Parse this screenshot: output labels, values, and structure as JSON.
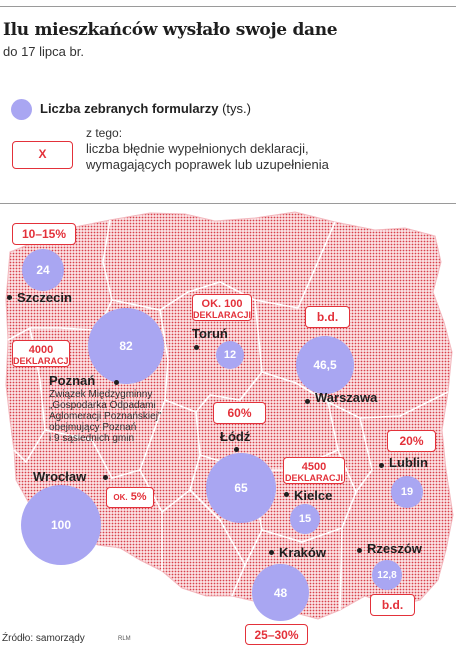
{
  "header": {
    "title": "Ilu mieszkańców wysłało swoje dane",
    "subtitle": "do 17 lipca br."
  },
  "legend": {
    "circle_label": "Liczba zebranych formularzy",
    "circle_unit": "(tys.)",
    "sub_label": "z tego:",
    "box_symbol": "X",
    "box_desc_line1": "liczba błędnie wypełnionych deklaracji,",
    "box_desc_line2": "wymagających poprawek lub uzupełnienia"
  },
  "colors": {
    "circle": "#a9a6f2",
    "tag_border": "#e3313a",
    "map_fill": "#f7c9cd",
    "map_dots": "#d8404b"
  },
  "cities": {
    "szczecin": {
      "name": "Szczecin",
      "value": "24",
      "tag": "10–15%"
    },
    "torun": {
      "name": "Toruń",
      "value": "12",
      "tag_top": "OK. 100",
      "tag_bottom": "DEKLARACJI"
    },
    "warszawa": {
      "name": "Warszawa",
      "value": "46,5",
      "tag": "b.d."
    },
    "poznan": {
      "name": "Poznań",
      "value": "82",
      "tag_top": "4000",
      "tag_bottom": "DEKLARACJI",
      "note": [
        "Związek Międzygminny",
        "„Gospodarka Odpadami",
        "Aglomeracji Poznańskiej”",
        "obejmujący Poznań",
        "i 9 sąsiednich gmin"
      ]
    },
    "lodz": {
      "name": "Łódź",
      "value": "65",
      "tag": "60%"
    },
    "lublin": {
      "name": "Lublin",
      "value": "19",
      "tag": "20%"
    },
    "wroclaw": {
      "name": "Wrocław",
      "value": "100",
      "tag_prefix": "OK.",
      "tag": "5%"
    },
    "kielce": {
      "name": "Kielce",
      "value": "15",
      "tag_top": "4500",
      "tag_bottom": "DEKLARACJI"
    },
    "krakow": {
      "name": "Kraków",
      "value": "48",
      "tag": "25–30%"
    },
    "rzeszow": {
      "name": "Rzeszów",
      "value": "12,8",
      "tag": "b.d."
    }
  },
  "footer": {
    "source": "Źródło: samorządy",
    "author": "RLM"
  }
}
